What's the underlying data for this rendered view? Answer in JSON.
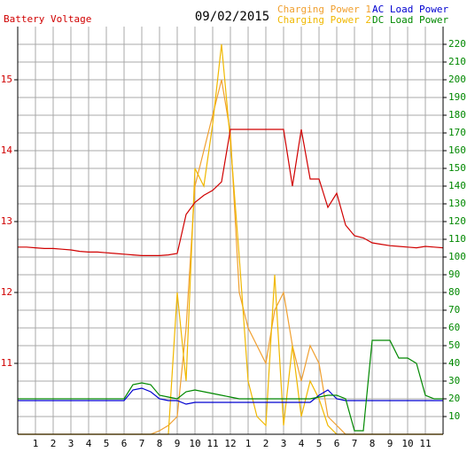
{
  "chart_data": {
    "type": "line",
    "title": "09/02/2015",
    "ylabel": "Battery Voltage",
    "x": [
      0,
      0.5,
      1,
      1.5,
      2,
      2.5,
      3,
      3.5,
      4,
      4.5,
      5,
      5.5,
      6,
      6.5,
      7,
      7.5,
      8,
      8.5,
      9,
      9.5,
      10,
      10.5,
      11,
      11.5,
      12,
      12.5,
      13,
      13.5,
      14,
      14.5,
      15,
      15.5,
      16,
      16.5,
      17,
      17.5,
      18,
      18.5,
      19,
      19.5,
      20,
      20.5,
      21,
      21.5,
      22,
      22.5,
      23,
      23.5,
      24
    ],
    "xlim": [
      0,
      24
    ],
    "xticks": [
      {
        "value": 1,
        "label": "1"
      },
      {
        "value": 2,
        "label": "2"
      },
      {
        "value": 3,
        "label": "3"
      },
      {
        "value": 4,
        "label": "4"
      },
      {
        "value": 5,
        "label": "5"
      },
      {
        "value": 6,
        "label": "6"
      },
      {
        "value": 7,
        "label": "7"
      },
      {
        "value": 8,
        "label": "8"
      },
      {
        "value": 9,
        "label": "9"
      },
      {
        "value": 10,
        "label": "10"
      },
      {
        "value": 11,
        "label": "11"
      },
      {
        "value": 12,
        "label": "12"
      },
      {
        "value": 13,
        "label": "1"
      },
      {
        "value": 14,
        "label": "2"
      },
      {
        "value": 15,
        "label": "3"
      },
      {
        "value": 16,
        "label": "4"
      },
      {
        "value": 17,
        "label": "5"
      },
      {
        "value": 18,
        "label": "6"
      },
      {
        "value": 19,
        "label": "7"
      },
      {
        "value": 20,
        "label": "8"
      },
      {
        "value": 21,
        "label": "9"
      },
      {
        "value": 22,
        "label": "10"
      },
      {
        "value": 23,
        "label": "11"
      }
    ],
    "ylim": [
      10,
      15.75
    ],
    "yticks": [
      11,
      12,
      13,
      14,
      15
    ],
    "y2lim": [
      0,
      230
    ],
    "y2ticks": [
      10,
      20,
      30,
      40,
      50,
      60,
      70,
      80,
      90,
      100,
      110,
      120,
      130,
      140,
      150,
      160,
      170,
      180,
      190,
      200,
      210,
      220
    ],
    "grid": true,
    "series": [
      {
        "name": "Battery Voltage",
        "color": "#d00000",
        "values": [
          12.64,
          12.64,
          12.63,
          12.62,
          12.62,
          12.61,
          12.6,
          12.58,
          12.57,
          12.57,
          12.56,
          12.55,
          12.54,
          12.53,
          12.52,
          12.52,
          12.52,
          12.53,
          12.55,
          13.1,
          13.27,
          13.37,
          13.44,
          13.56,
          14.3,
          14.3,
          14.3,
          14.3,
          14.3,
          14.3,
          14.3,
          13.5,
          14.3,
          13.6,
          13.6,
          13.2,
          13.4,
          12.95,
          12.8,
          12.77,
          12.7,
          12.68,
          12.66,
          12.65,
          12.64,
          12.63,
          12.65,
          12.64,
          12.63
        ]
      },
      {
        "name": "Charging Power 1",
        "color": "#f0a030",
        "axis": "y2",
        "values": [
          0,
          0,
          0,
          0,
          0,
          0,
          0,
          0,
          0,
          0,
          0,
          0,
          0,
          0,
          0,
          0,
          2,
          5,
          10,
          60,
          140,
          160,
          180,
          200,
          170,
          80,
          60,
          50,
          40,
          70,
          80,
          50,
          30,
          50,
          40,
          10,
          5,
          0,
          0,
          0,
          0,
          0,
          0,
          0,
          0,
          0,
          0,
          0,
          0
        ]
      },
      {
        "name": "AC Load Power",
        "color": "#0000d0",
        "axis": "y2",
        "values": [
          19,
          19,
          19,
          19,
          19,
          19,
          19,
          19,
          19,
          19,
          19,
          19,
          19,
          25,
          26,
          24,
          20,
          19,
          19,
          17,
          18,
          18,
          18,
          18,
          18,
          18,
          18,
          18,
          18,
          18,
          18,
          18,
          18,
          18,
          22,
          25,
          20,
          19,
          19,
          19,
          19,
          19,
          19,
          19,
          19,
          19,
          19,
          19,
          19
        ]
      },
      {
        "name": "Charging Power 2",
        "color": "#f0b800",
        "axis": "y2",
        "values": [
          0,
          0,
          0,
          0,
          0,
          0,
          0,
          0,
          0,
          0,
          0,
          0,
          0,
          0,
          0,
          0,
          0,
          0,
          80,
          30,
          150,
          140,
          175,
          220,
          165,
          100,
          30,
          10,
          5,
          90,
          5,
          50,
          10,
          30,
          20,
          5,
          0,
          0,
          0,
          0,
          0,
          0,
          0,
          0,
          0,
          0,
          0,
          0,
          0
        ]
      },
      {
        "name": "DC Load Power",
        "color": "#008800",
        "axis": "y2",
        "values": [
          20,
          20,
          20,
          20,
          20,
          20,
          20,
          20,
          20,
          20,
          20,
          20,
          20,
          28,
          29,
          28,
          22,
          21,
          20,
          24,
          25,
          24,
          23,
          22,
          21,
          20,
          20,
          20,
          20,
          20,
          20,
          20,
          20,
          20,
          21,
          22,
          22,
          20,
          2,
          2,
          53,
          53,
          53,
          43,
          43,
          40,
          22,
          20,
          20
        ]
      }
    ]
  }
}
